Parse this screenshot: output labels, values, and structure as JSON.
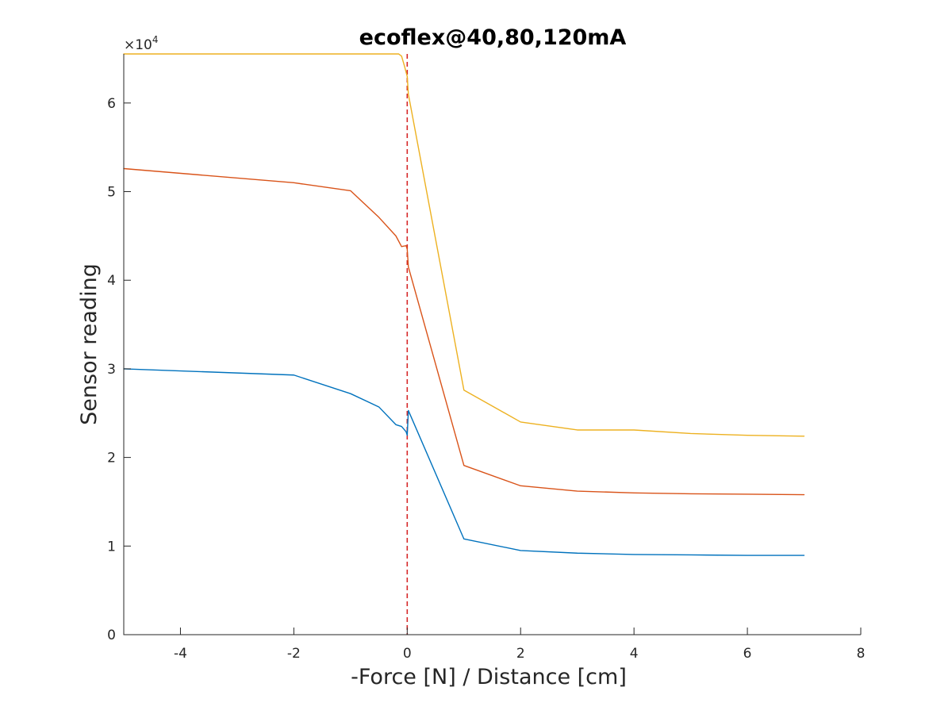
{
  "chart_data": {
    "type": "line",
    "title": "ecoflex@40,80,120mA",
    "xlabel": "-Force [N] / Distance [cm]",
    "ylabel": "Sensor reading",
    "y_exponent_label": "×10",
    "y_exponent_power": "4",
    "xlim": [
      -5,
      8
    ],
    "ylim": [
      0,
      65536
    ],
    "xticks": [
      -4,
      -2,
      0,
      2,
      4,
      6,
      8
    ],
    "xtick_labels": [
      "-4",
      "-2",
      "0",
      "2",
      "4",
      "6",
      "8"
    ],
    "yticks": [
      0,
      10000,
      20000,
      30000,
      40000,
      50000,
      60000
    ],
    "ytick_labels": [
      "0",
      "1",
      "2",
      "3",
      "4",
      "5",
      "6"
    ],
    "grid": false,
    "vertical_reference_line": {
      "x": 0,
      "color": "#d62728",
      "style": "dashed"
    },
    "series": [
      {
        "color": "#0072bd",
        "x": [
          -5,
          -2,
          -1,
          -0.5,
          -0.2,
          -0.1,
          -0.02,
          0,
          0.02,
          1,
          2,
          3,
          4,
          5,
          6,
          7
        ],
        "y": [
          30000,
          29300,
          27200,
          25700,
          23700,
          23500,
          22900,
          22500,
          25300,
          10800,
          9500,
          9200,
          9050,
          9000,
          8950,
          8950
        ]
      },
      {
        "color": "#d95319",
        "x": [
          -5,
          -2,
          -1,
          -0.5,
          -0.2,
          -0.1,
          -0.02,
          0,
          0.02,
          1,
          2,
          3,
          4,
          5,
          6,
          7
        ],
        "y": [
          52600,
          51000,
          50100,
          47100,
          45000,
          43800,
          43900,
          43500,
          41500,
          19100,
          16800,
          16200,
          16000,
          15900,
          15850,
          15800
        ]
      },
      {
        "color": "#edb120",
        "x": [
          -5,
          -2,
          -1,
          -0.5,
          -0.15,
          -0.1,
          -0.05,
          0,
          0.02,
          1,
          2,
          3,
          4,
          5,
          6,
          7
        ],
        "y": [
          65535,
          65535,
          65535,
          65535,
          65535,
          65300,
          64200,
          63000,
          61000,
          27600,
          24000,
          23100,
          23100,
          22700,
          22500,
          22400
        ]
      }
    ]
  }
}
